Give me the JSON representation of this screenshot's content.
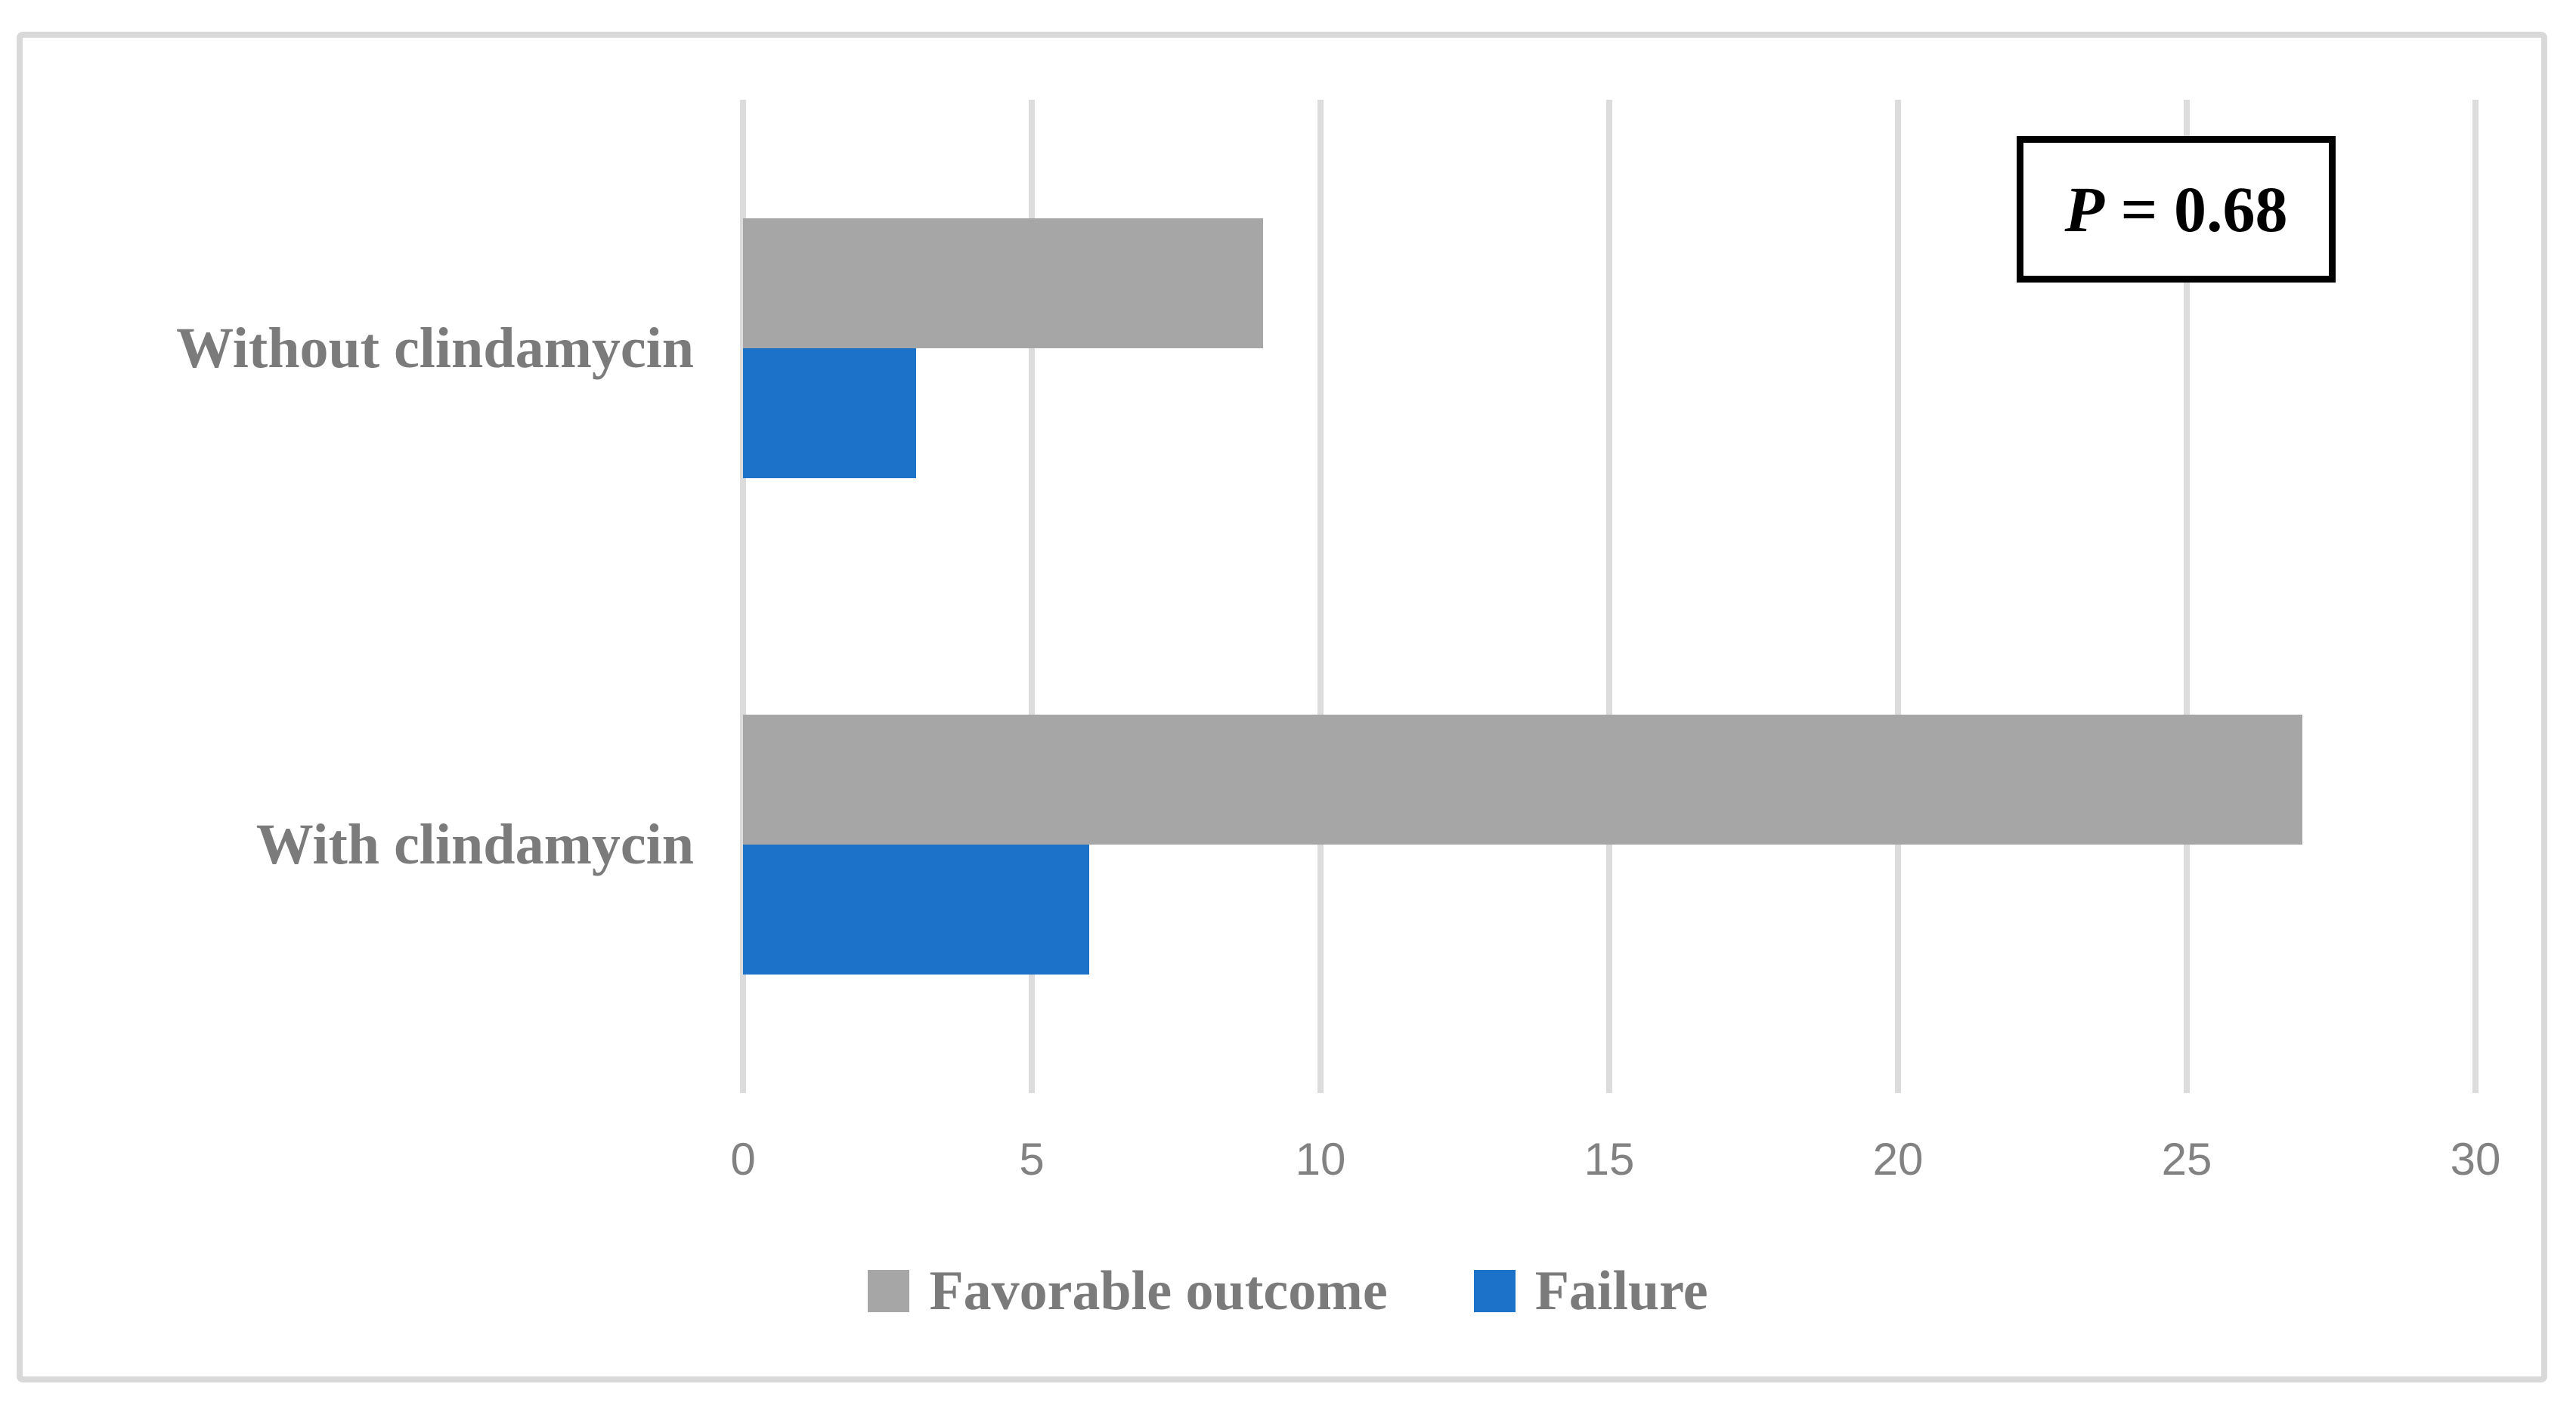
{
  "chart_data": {
    "type": "bar",
    "orientation": "horizontal",
    "categories": [
      "Without clindamycin",
      "With clindamycin"
    ],
    "series": [
      {
        "name": "Favorable outcome",
        "color": "#A6A6A6",
        "values": [
          9,
          27
        ]
      },
      {
        "name": "Failure",
        "color": "#1B72C8",
        "values": [
          3,
          6
        ]
      }
    ],
    "xlim": [
      0,
      30
    ],
    "xticks": [
      0,
      5,
      10,
      15,
      20,
      25,
      30
    ],
    "grid": true,
    "gridline_color": "#DCDCDC",
    "legend_position": "bottom",
    "annotation": {
      "variable": "P",
      "rest": " = 0.68"
    },
    "title": "",
    "xlabel": "",
    "ylabel": ""
  },
  "frame": {
    "border_color": "#D9D9D9"
  }
}
